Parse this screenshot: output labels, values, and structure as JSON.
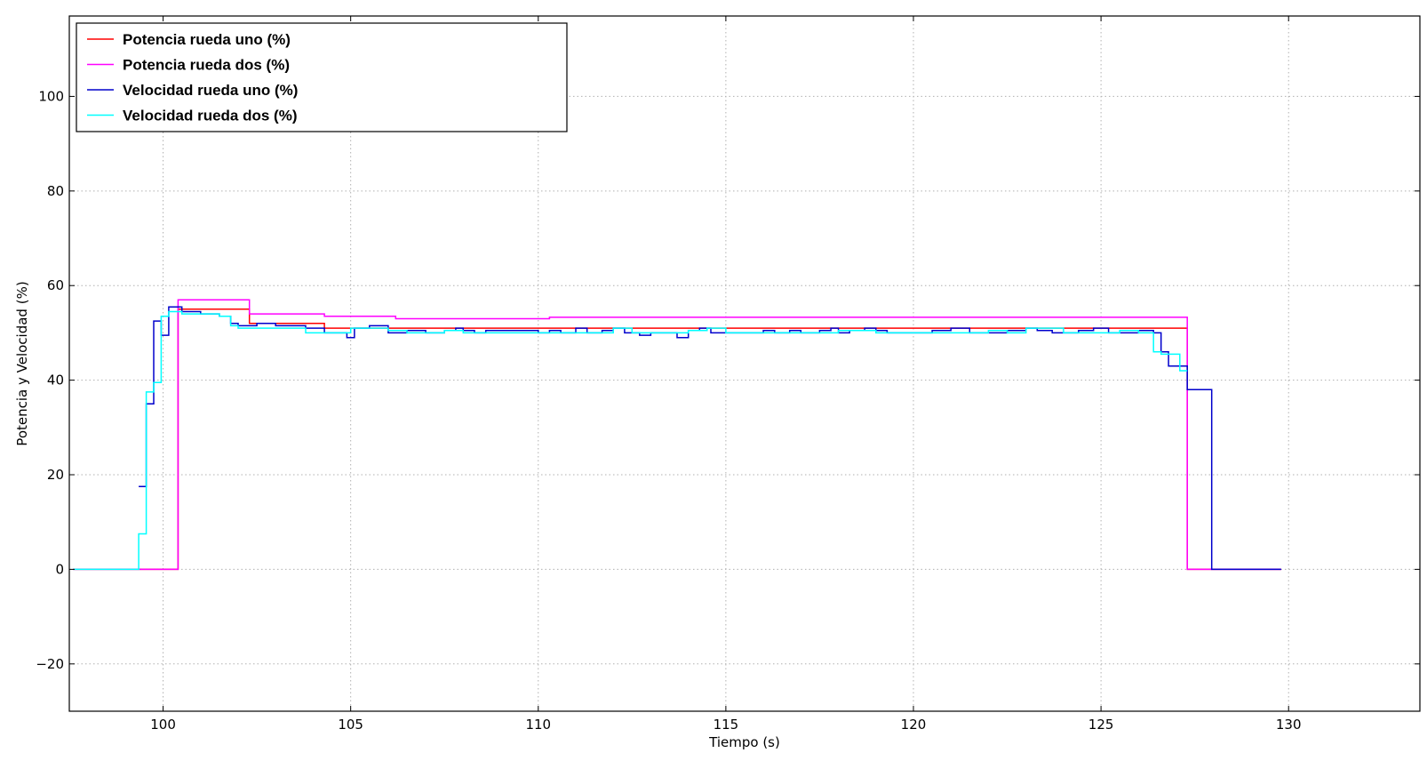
{
  "chart_data": {
    "type": "line",
    "title": "",
    "xlabel": "Tiempo (s)",
    "ylabel": "Potencia y Velocidad (%)",
    "xlim": [
      97.5,
      133.5
    ],
    "ylim": [
      -30,
      117
    ],
    "grid": true,
    "step": true,
    "legend_position": "top-left",
    "x_ticks": [
      100,
      105,
      110,
      115,
      120,
      125,
      130
    ],
    "x_tick_labels": [
      "100",
      "105",
      "110",
      "115",
      "120",
      "125",
      "130"
    ],
    "y_ticks": [
      -20,
      0,
      20,
      40,
      60,
      80,
      100
    ],
    "y_tick_labels": [
      "−20",
      "0",
      "20",
      "40",
      "60",
      "80",
      "100"
    ],
    "series": [
      {
        "name": "Potencia rueda uno (%)",
        "color": "#ff0000",
        "x": [
          97.6,
          100.2,
          100.4,
          102.3,
          104.3,
          127.3,
          127.3,
          129.8
        ],
        "y": [
          0,
          0,
          55,
          52,
          51,
          51,
          0,
          0
        ]
      },
      {
        "name": "Potencia rueda dos (%)",
        "color": "#ff00ff",
        "x": [
          97.6,
          100.2,
          100.4,
          102.3,
          104.3,
          106.2,
          110.3,
          127.3,
          127.3,
          129.8
        ],
        "y": [
          0,
          0,
          57,
          54,
          53.5,
          53,
          53.3,
          53.3,
          0,
          0
        ],
        "hide_after": 127.3
      },
      {
        "name": "Velocidad rueda uno (%)",
        "color": "#0000cc",
        "x": [
          99.35,
          99.55,
          99.75,
          99.95,
          100.15,
          100.5,
          101.0,
          101.5,
          101.8,
          102.0,
          102.5,
          103.0,
          103.8,
          104.3,
          104.9,
          105.1,
          105.5,
          106.0,
          106.5,
          107.0,
          107.5,
          107.8,
          108.0,
          108.3,
          108.6,
          110.0,
          110.3,
          110.6,
          111.0,
          111.3,
          111.7,
          112.0,
          112.3,
          112.7,
          113.0,
          113.3,
          113.7,
          114.0,
          114.3,
          114.6,
          115.0,
          115.5,
          116.0,
          116.3,
          116.7,
          117.0,
          117.5,
          117.8,
          118.0,
          118.3,
          118.7,
          119.0,
          119.3,
          120.0,
          120.5,
          121.0,
          121.5,
          122.0,
          122.5,
          123.0,
          123.3,
          123.7,
          124.0,
          124.4,
          124.8,
          125.2,
          125.5,
          126.0,
          126.4,
          126.6,
          126.8,
          127.1,
          127.3,
          127.9,
          127.95,
          129.8
        ],
        "y": [
          17.5,
          35,
          52.5,
          49.5,
          55.5,
          54.5,
          54,
          53.5,
          52,
          51.5,
          52,
          51.5,
          51,
          50,
          49,
          51,
          51.5,
          50,
          50.5,
          50,
          50.5,
          51,
          50.5,
          50,
          50.5,
          50,
          50.5,
          50,
          51,
          50,
          50.5,
          51,
          50,
          49.5,
          50,
          50,
          49,
          50.5,
          51,
          50,
          50,
          50,
          50.5,
          50,
          50.5,
          50,
          50.5,
          51,
          50,
          50.5,
          51,
          50.5,
          50,
          50,
          50.5,
          51,
          50,
          50,
          50.5,
          51,
          50.5,
          50,
          50,
          50.5,
          51,
          50,
          50,
          50.5,
          50,
          46,
          43,
          43,
          38,
          38,
          0,
          0
        ]
      },
      {
        "name": "Velocidad rueda dos (%)",
        "color": "#00ffff",
        "x": [
          97.6,
          99.35,
          99.55,
          99.75,
          99.95,
          100.15,
          100.5,
          101.0,
          101.5,
          101.8,
          102.0,
          102.5,
          103.0,
          103.8,
          104.0,
          104.5,
          105.0,
          105.5,
          106.0,
          106.5,
          107.0,
          107.5,
          108.0,
          109.0,
          110.0,
          111.0,
          111.5,
          112.0,
          112.5,
          113.0,
          113.5,
          114.0,
          114.5,
          115.0,
          116.0,
          117.0,
          118.0,
          119.0,
          120.0,
          121.0,
          122.0,
          122.5,
          123.0,
          124.0,
          125.0,
          125.5,
          126.0,
          126.4,
          126.6,
          126.8,
          127.1,
          127.3
        ],
        "y": [
          0,
          7.5,
          37.5,
          39.5,
          53.5,
          54.5,
          54,
          54,
          53.5,
          51.5,
          51,
          51,
          51,
          50,
          50,
          50,
          51,
          51,
          50.5,
          50,
          50,
          50.5,
          50,
          50,
          50,
          50,
          50,
          51,
          50,
          50,
          50,
          50.5,
          51,
          50,
          50,
          50,
          50.5,
          50,
          50,
          50,
          50.5,
          50,
          51,
          50,
          50,
          50.5,
          50,
          46,
          45.5,
          45.5,
          42,
          42
        ]
      }
    ]
  }
}
